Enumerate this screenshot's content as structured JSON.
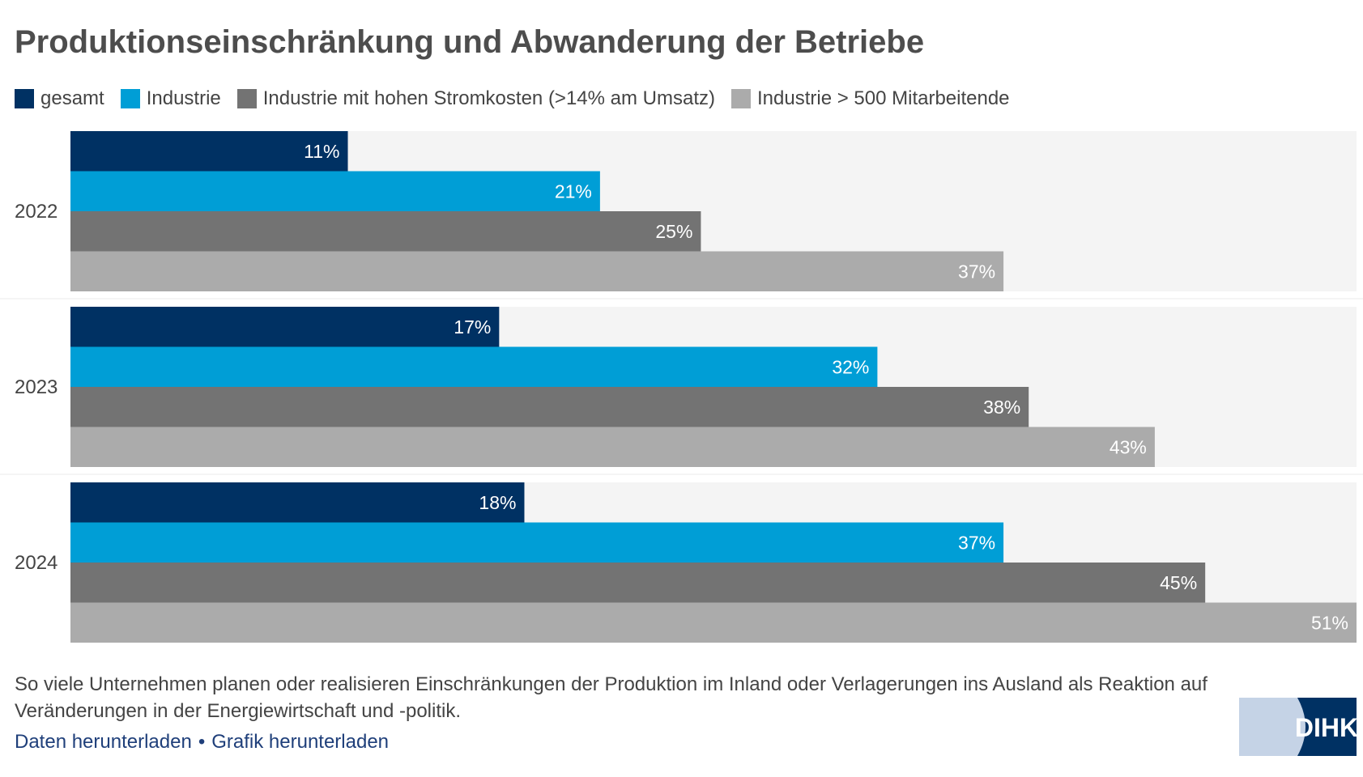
{
  "header": {
    "title": "Produktionseinschränkung und Abwanderung der Betriebe"
  },
  "legend": [
    {
      "label": "gesamt",
      "color": "#003163"
    },
    {
      "label": "Industrie",
      "color": "#009ed6"
    },
    {
      "label": "Industrie mit hohen Stromkosten (>14% am Umsatz)",
      "color": "#737373"
    },
    {
      "label": "Industrie > 500 Mitarbeitende",
      "color": "#ababab"
    }
  ],
  "chart_data": {
    "type": "bar",
    "orientation": "horizontal",
    "title": "Produktionseinschränkung und Abwanderung der Betriebe",
    "categories": [
      "2022",
      "2023",
      "2024"
    ],
    "series": [
      {
        "name": "gesamt",
        "color": "#003163",
        "values": [
          11,
          17,
          18
        ],
        "labels": [
          "11%",
          "17%",
          "18%"
        ]
      },
      {
        "name": "Industrie",
        "color": "#009ed6",
        "values": [
          21,
          32,
          37
        ],
        "labels": [
          "21%",
          "32%",
          "37%"
        ]
      },
      {
        "name": "Industrie mit hohen Stromkosten (>14% am Umsatz)",
        "color": "#737373",
        "values": [
          25,
          38,
          45
        ],
        "labels": [
          "25%",
          "38%",
          "45%"
        ]
      },
      {
        "name": "Industrie > 500 Mitarbeitende",
        "color": "#ababab",
        "values": [
          37,
          43,
          51
        ],
        "labels": [
          "37%",
          "43%",
          "51%"
        ]
      }
    ],
    "xlim": [
      0,
      51
    ],
    "unit": "%",
    "xlabel": "",
    "ylabel": "",
    "grid": false,
    "legend_position": "top-left"
  },
  "footer": {
    "caption": "So viele Unternehmen planen oder realisieren Einschränkungen der Produktion im Inland oder Verlagerungen ins Ausland als Reaktion auf Veränderungen in der Energiewirtschaft und -politik.",
    "download_data": "Daten herunterladen",
    "separator": "•",
    "download_graphic": "Grafik herunterladen",
    "logo_text": "DIHK"
  },
  "colors": {
    "group_background": "#f4f4f4",
    "bar_label": "#ffffff",
    "title": "#4d4d4d",
    "link": "#1f3f7a",
    "logo_dark": "#003163",
    "logo_light": "#c5d3e6"
  }
}
